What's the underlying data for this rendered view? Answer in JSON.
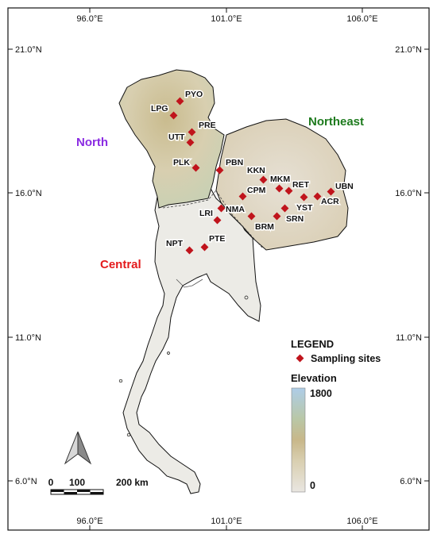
{
  "graticule": {
    "longitudes": [
      "96.0°E",
      "101.0°E",
      "106.0°E"
    ],
    "latitudes": [
      "21.0°N",
      "16.0°N",
      "11.0°N",
      "6.0°N"
    ]
  },
  "regions": [
    {
      "name": "North",
      "color": "#8a2be2"
    },
    {
      "name": "Northeast",
      "color": "#1e7b1e"
    },
    {
      "name": "Central",
      "color": "#e41a1c"
    }
  ],
  "sites": [
    "PYO",
    "LPG",
    "PRE",
    "UTT",
    "PLK",
    "PBN",
    "KKN",
    "MKM",
    "RET",
    "UBN",
    "CPM",
    "ACR",
    "YST",
    "SRN",
    "BRM",
    "NMA",
    "LRI",
    "NPT",
    "PTE"
  ],
  "legend": {
    "title": "LEGEND",
    "marker_label": "Sampling sites",
    "marker_color": "#c0141c",
    "elevation_title": "Elevation",
    "elevation_max": "1800",
    "elevation_min": "0"
  },
  "scalebar": {
    "labels": [
      "0",
      "100",
      "200 km"
    ]
  }
}
